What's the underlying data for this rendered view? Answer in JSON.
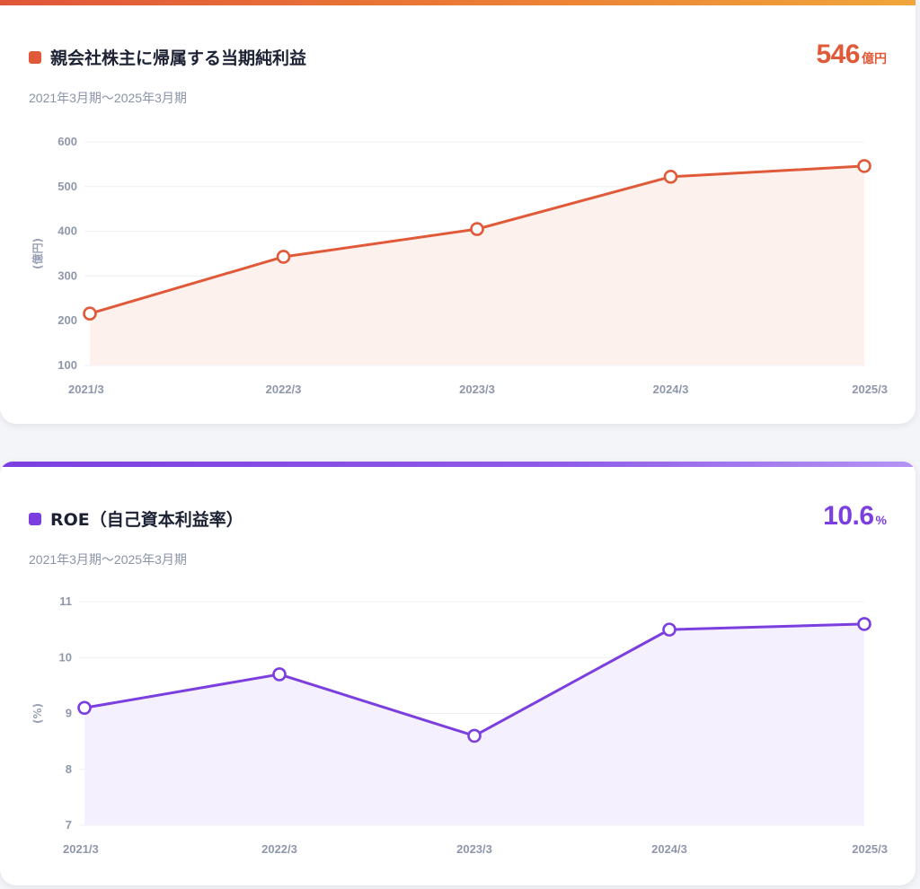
{
  "cards": [
    {
      "title": "親会社株主に帰属する当期純利益",
      "period": "2021年3月期〜2025年3月期",
      "kpi_value": "546",
      "kpi_unit": "億円",
      "color": "#e05a3a",
      "fill_color": "#fdf1ee",
      "chart_data": {
        "type": "area",
        "title": "親会社株主に帰属する当期純利益",
        "categories": [
          "2021/3",
          "2022/3",
          "2023/3",
          "2024/3",
          "2025/3"
        ],
        "values": [
          216,
          343,
          405,
          522,
          546
        ],
        "ylabel": "(億円)",
        "ylim": [
          100,
          600
        ],
        "yticks": [
          100,
          200,
          300,
          400,
          500,
          600
        ],
        "ytick_labels": [
          "100",
          "200",
          "300",
          "400",
          "500",
          "600"
        ],
        "grid": true
      }
    },
    {
      "title": "ROE（自己資本利益率）",
      "period": "2021年3月期〜2025年3月期",
      "kpi_value": "10.6",
      "kpi_unit": "%",
      "color": "#7b3fe0",
      "fill_color": "#f5f0fd",
      "chart_data": {
        "type": "area",
        "title": "ROE（自己資本利益率）",
        "categories": [
          "2021/3",
          "2022/3",
          "2023/3",
          "2024/3",
          "2025/3"
        ],
        "values": [
          9.1,
          9.7,
          8.6,
          10.5,
          10.6
        ],
        "ylabel": "(%)",
        "ylim": [
          7,
          11
        ],
        "yticks": [
          7,
          8,
          9,
          10,
          11
        ],
        "ytick_labels": [
          "7",
          "8",
          "9",
          "10",
          "11"
        ],
        "grid": true
      }
    }
  ]
}
